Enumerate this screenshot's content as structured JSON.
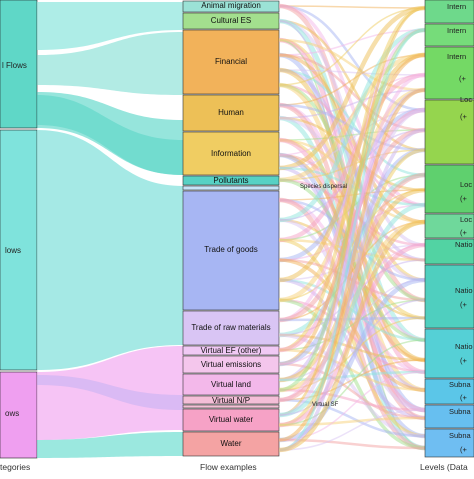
{
  "axis_labels": {
    "left": "tegories",
    "middle": "Flow examples",
    "right": "Levels (Data"
  },
  "categories": [
    {
      "label": "l Flows",
      "color": "#5fd7c7"
    },
    {
      "label": "lows",
      "color": "#7fe3dc"
    },
    {
      "label": "ows",
      "color": "#ef9ff0"
    }
  ],
  "flow_examples": [
    {
      "label": "Animal migration",
      "color": "#9be2d6"
    },
    {
      "label": "Cultural ES",
      "color": "#a3df8e"
    },
    {
      "label": "Financial",
      "color": "#f2b25a"
    },
    {
      "label": "Human",
      "color": "#edc057"
    },
    {
      "label": "Information",
      "color": "#f0cd62"
    },
    {
      "label": "Pollutants",
      "color": "#57d1c4"
    },
    {
      "label": "",
      "color": "#c7e3f7"
    },
    {
      "label": "Trade of goods",
      "color": "#a7b6f3"
    },
    {
      "label": "Trade of raw materials",
      "color": "#d9c5f4"
    },
    {
      "label": "Virtual EF (other)",
      "color": "#f0c9f4"
    },
    {
      "label": "Virtual emissions",
      "color": "#f4c6ec"
    },
    {
      "label": "Virtual land",
      "color": "#f3b8ea"
    },
    {
      "label": "Virtual N/P",
      "color": "#f4bfd7"
    },
    {
      "label": "Virtual water",
      "color": "#f6a2c6"
    },
    {
      "label": "Water",
      "color": "#f4a3a3"
    }
  ],
  "levels": [
    {
      "label": "Intern",
      "color": "#6ed98b"
    },
    {
      "label": "Intern",
      "color": "#76dc7a"
    },
    {
      "label": "Intern",
      "color": "#74d965"
    },
    {
      "label": "(+",
      "color": "#74d965"
    },
    {
      "label": "Loc",
      "color": "#95d54e"
    },
    {
      "label": "(+",
      "color": "#95d54e"
    },
    {
      "label": "Loc",
      "color": "#5fd06e"
    },
    {
      "label": "(+",
      "color": "#5fd06e"
    },
    {
      "label": "Loc",
      "color": "#6fd89b"
    },
    {
      "label": "(+",
      "color": "#6fd89b"
    },
    {
      "label": "Natio",
      "color": "#52d3a3"
    },
    {
      "label": "Natio",
      "color": "#4fcfbf"
    },
    {
      "label": "(+",
      "color": "#4fcfbf"
    },
    {
      "label": "Natio",
      "color": "#55d0d6"
    },
    {
      "label": "(+",
      "color": "#55d0d6"
    },
    {
      "label": "Subna",
      "color": "#5bc6e8"
    },
    {
      "label": "(+",
      "color": "#5bc6e8"
    },
    {
      "label": "Subna",
      "color": "#67bff0"
    },
    {
      "label": "Subna",
      "color": "#6fbef2"
    },
    {
      "label": "(+",
      "color": "#6fbef2"
    }
  ],
  "annotations": {
    "species_dispersal": "Species dispersal",
    "virtual_sf": "Virtual SF"
  }
}
